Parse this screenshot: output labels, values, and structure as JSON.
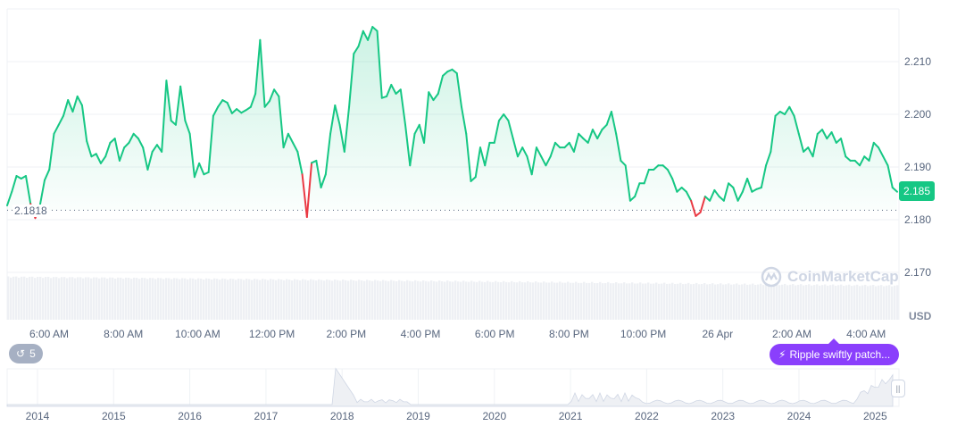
{
  "chart_data": {
    "type": "line",
    "currency": "USD",
    "y_ticks": [
      "2.210",
      "2.200",
      "2.190",
      "2.180",
      "2.170"
    ],
    "ylim": [
      2.165,
      2.2185
    ],
    "x_ticks": [
      "6:00 AM",
      "8:00 AM",
      "10:00 AM",
      "12:00 PM",
      "2:00 PM",
      "4:00 PM",
      "6:00 PM",
      "8:00 PM",
      "10:00 PM",
      "26 Apr",
      "2:00 AM",
      "4:00 AM"
    ],
    "baseline": 2.1818,
    "baseline_label": "2.1818",
    "current_price": "2.185",
    "colors": {
      "up": "#16c784",
      "down": "#ea3943",
      "volume": "#eef0f4"
    },
    "grid": true,
    "prices": [
      2.1827,
      2.1853,
      2.1883,
      2.1878,
      2.1883,
      2.183,
      2.1803,
      2.1827,
      2.1875,
      2.1895,
      2.1963,
      2.198,
      2.1997,
      2.2027,
      2.2005,
      2.2034,
      2.2017,
      2.1949,
      2.192,
      2.1925,
      2.1907,
      2.192,
      2.1946,
      2.1954,
      2.1912,
      2.1937,
      2.1946,
      2.1963,
      2.1954,
      2.1937,
      2.1895,
      2.1929,
      2.1942,
      2.1929,
      2.2064,
      2.1988,
      2.198,
      2.2053,
      2.1988,
      2.1963,
      2.1881,
      2.1907,
      2.1886,
      2.189,
      2.1997,
      2.2014,
      2.2027,
      2.2022,
      2.2002,
      2.201,
      2.2003,
      2.2008,
      2.2014,
      2.2039,
      2.2141,
      2.2014,
      2.2025,
      2.2047,
      2.2034,
      2.1937,
      2.1963,
      2.1946,
      2.1929,
      2.1886,
      2.1805,
      2.1908,
      2.1912,
      2.1861,
      2.1886,
      2.1963,
      2.2017,
      2.198,
      2.1929,
      2.2014,
      2.2115,
      2.2129,
      2.2158,
      2.2141,
      2.2166,
      2.2158,
      2.2031,
      2.2034,
      2.2056,
      2.2039,
      2.2047,
      2.198,
      2.1903,
      2.1963,
      2.198,
      2.1946,
      2.2042,
      2.2027,
      2.2039,
      2.2073,
      2.2081,
      2.2085,
      2.2078,
      2.2014,
      2.1963,
      2.1873,
      2.1881,
      2.1937,
      2.1903,
      2.1946,
      2.1946,
      2.1988,
      2.2,
      2.1988,
      2.1954,
      2.192,
      2.1937,
      2.192,
      2.1886,
      2.1937,
      2.192,
      2.1903,
      2.192,
      2.1946,
      2.1937,
      2.1937,
      2.1946,
      2.1929,
      2.1963,
      2.1954,
      2.1946,
      2.1971,
      2.1954,
      2.1971,
      2.198,
      2.2005,
      2.1963,
      2.1912,
      2.1903,
      2.1836,
      2.1844,
      2.1869,
      2.1869,
      2.1895,
      2.1895,
      2.1903,
      2.1903,
      2.1895,
      2.1878,
      2.1853,
      2.1861,
      2.1853,
      2.1836,
      2.1807,
      2.1814,
      2.1844,
      2.1836,
      2.1856,
      2.1844,
      2.1836,
      2.1869,
      2.1861,
      2.1836,
      2.1853,
      2.1878,
      2.1853,
      2.1858,
      2.1861,
      2.1903,
      2.1929,
      2.1997,
      2.2005,
      2.2,
      2.2014,
      2.1997,
      2.1963,
      2.1929,
      2.1937,
      2.192,
      2.1963,
      2.1971,
      2.1954,
      2.1966,
      2.1946,
      2.1954,
      2.192,
      2.1912,
      2.1912,
      2.1903,
      2.192,
      2.1912,
      2.1946,
      2.1937,
      2.192,
      2.1903,
      2.1861,
      2.1853
    ]
  },
  "navigator": {
    "years": [
      "2014",
      "2015",
      "2016",
      "2017",
      "2018",
      "2019",
      "2020",
      "2021",
      "2022",
      "2023",
      "2024",
      "2025"
    ],
    "handle_icon": "grip-handle-icon"
  },
  "watermark": "CoinMarketCap",
  "history_badge": {
    "icon": "history-icon",
    "count": "5"
  },
  "news_pill": {
    "icon": "lightning-icon",
    "label": "Ripple swiftly patch..."
  }
}
